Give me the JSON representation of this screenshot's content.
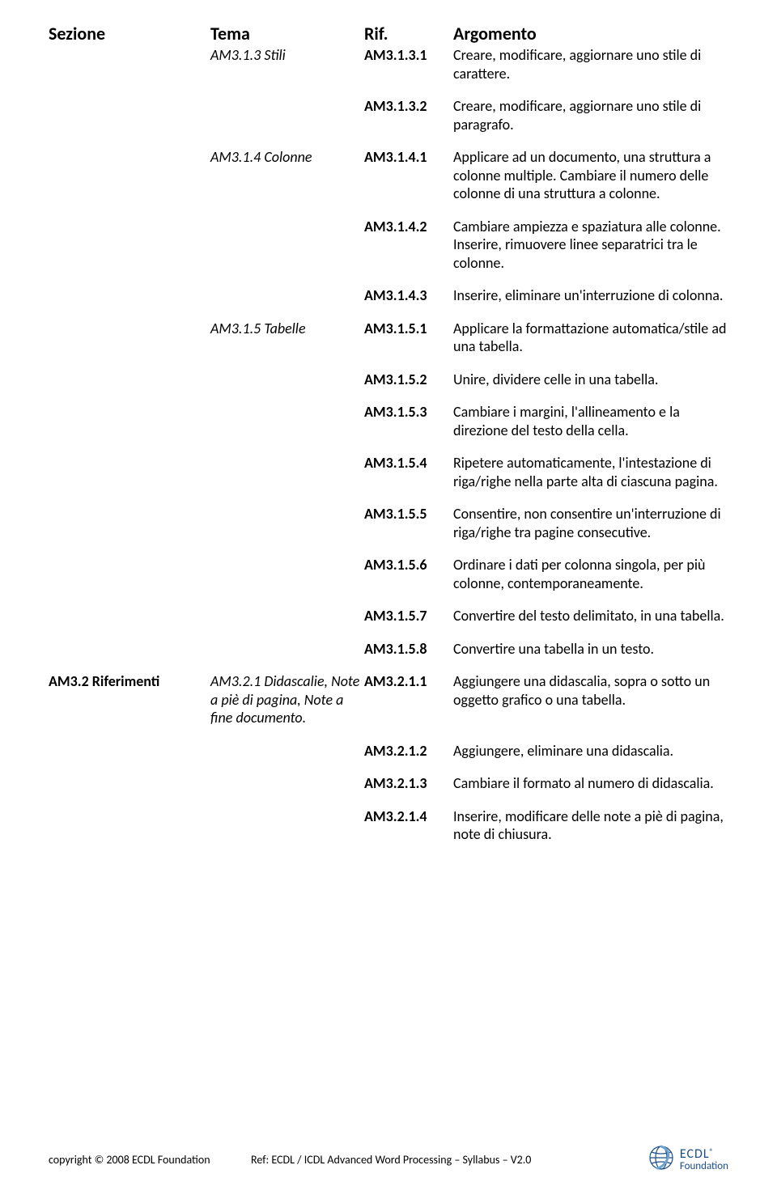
{
  "header": {
    "sezione": "Sezione",
    "tema": "Tema",
    "rif": "Rif.",
    "argomento": "Argomento"
  },
  "rows": [
    {
      "sezione": "",
      "tema": "AM3.1.3 Stili",
      "rif": "AM3.1.3.1",
      "arg": "Creare, modificare, aggiornare uno stile di carattere."
    },
    {
      "sezione": "",
      "tema": "",
      "rif": "AM3.1.3.2",
      "arg": "Creare, modificare, aggiornare uno stile di paragrafo."
    },
    {
      "sezione": "",
      "tema": "AM3.1.4 Colonne",
      "rif": "AM3.1.4.1",
      "arg": "Applicare ad un documento, una struttura a colonne multiple. Cambiare il numero delle colonne di una struttura a colonne."
    },
    {
      "sezione": "",
      "tema": "",
      "rif": "AM3.1.4.2",
      "arg": "Cambiare ampiezza e spaziatura alle colonne. Inserire, rimuovere linee separatrici tra le colonne."
    },
    {
      "sezione": "",
      "tema": "",
      "rif": "AM3.1.4.3",
      "arg": "Inserire, eliminare un'interruzione di colonna."
    },
    {
      "sezione": "",
      "tema": "AM3.1.5 Tabelle",
      "rif": "AM3.1.5.1",
      "arg": "Applicare la formattazione automatica/stile ad una tabella."
    },
    {
      "sezione": "",
      "tema": "",
      "rif": "AM3.1.5.2",
      "arg": "Unire, dividere celle in una tabella."
    },
    {
      "sezione": "",
      "tema": "",
      "rif": "AM3.1.5.3",
      "arg": "Cambiare i margini, l'allineamento e la direzione del testo della cella."
    },
    {
      "sezione": "",
      "tema": "",
      "rif": "AM3.1.5.4",
      "arg": "Ripetere automaticamente, l'intestazione di riga/righe nella parte alta di ciascuna pagina."
    },
    {
      "sezione": "",
      "tema": "",
      "rif": "AM3.1.5.5",
      "arg": "Consentire, non consentire un'interruzione di riga/righe tra pagine consecutive."
    },
    {
      "sezione": "",
      "tema": "",
      "rif": "AM3.1.5.6",
      "arg": "Ordinare i dati per colonna singola, per più colonne, contemporaneamente."
    },
    {
      "sezione": "",
      "tema": "",
      "rif": "AM3.1.5.7",
      "arg": "Convertire del testo delimitato, in una tabella."
    },
    {
      "sezione": "",
      "tema": "",
      "rif": "AM3.1.5.8",
      "arg": "Convertire una tabella in un testo."
    },
    {
      "sezione": "AM3.2 Riferimenti",
      "tema": "AM3.2.1 Didascalie, Note a piè di pagina, Note a fine documento.",
      "rif": "AM3.2.1.1",
      "arg": "Aggiungere una didascalia, sopra o sotto un oggetto grafico o una tabella."
    },
    {
      "sezione": "",
      "tema": "",
      "rif": "AM3.2.1.2",
      "arg": "Aggiungere, eliminare una didascalia."
    },
    {
      "sezione": "",
      "tema": "",
      "rif": "AM3.2.1.3",
      "arg": "Cambiare il formato al numero di didascalia."
    },
    {
      "sezione": "",
      "tema": "",
      "rif": "AM3.2.1.4",
      "arg": "Inserire, modificare delle note a piè di pagina, note di chiusura."
    }
  ],
  "footer": {
    "copyright": "copyright © 2008 ECDL Foundation",
    "ref": "Ref: ECDL / ICDL Advanced Word Processing – Syllabus – V2.0",
    "logo_line1": "ECDL",
    "logo_line2": "Foundation",
    "logo_reg": "®"
  },
  "colors": {
    "text": "#000000",
    "logo": "#1a4e8a",
    "bg": "#ffffff"
  }
}
